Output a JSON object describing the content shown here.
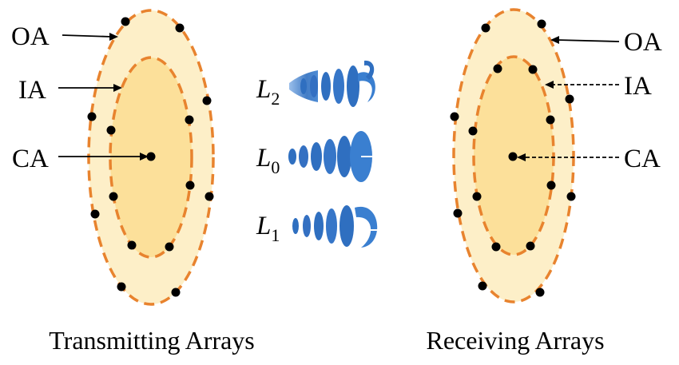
{
  "left_group": {
    "labels": {
      "outer": "OA",
      "inner": "IA",
      "center": "CA"
    },
    "caption": "Transmitting Arrays"
  },
  "right_group": {
    "labels": {
      "outer": "OA",
      "inner": "IA",
      "center": "CA"
    },
    "caption": "Receiving Arrays"
  },
  "modes": [
    {
      "symbol": "L",
      "subscript": "2"
    },
    {
      "symbol": "L",
      "subscript": "0"
    },
    {
      "symbol": "L",
      "subscript": "1"
    }
  ],
  "colors": {
    "outer_fill": "#fdefc8",
    "inner_fill": "#fce09a",
    "dashed_outline": "#e8832e",
    "element_dot": "#000000",
    "beam_blue": "#2f6fc0",
    "beam_light": "#8fb7e8"
  }
}
